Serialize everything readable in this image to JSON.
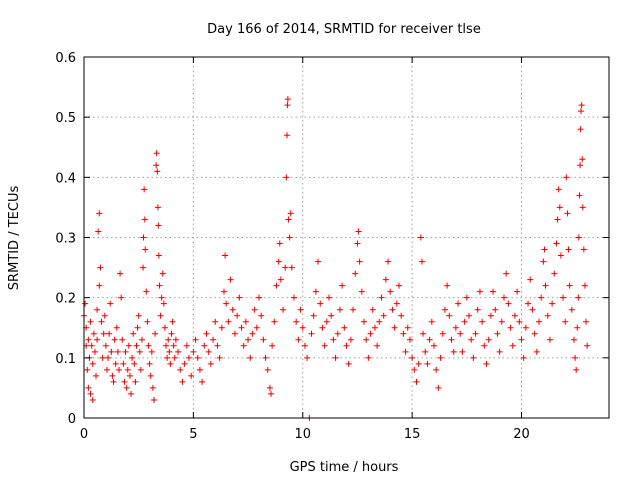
{
  "chart_data": {
    "type": "scatter",
    "title": "Day 166 of 2014, SRMTID for receiver tlse",
    "xlabel": "GPS time / hours",
    "ylabel": "SRMTID / TECUs",
    "xlim": [
      0,
      24
    ],
    "ylim": [
      0,
      0.6
    ],
    "xticks": [
      0,
      5,
      10,
      15,
      20
    ],
    "xtick_labels": [
      "0",
      "5",
      "10",
      "15",
      "20"
    ],
    "yticks": [
      0,
      0.1,
      0.2,
      0.3,
      0.4,
      0.5,
      0.6
    ],
    "ytick_labels": [
      "0",
      "0.1",
      "0.2",
      "0.3",
      "0.4",
      "0.5",
      "0.6"
    ],
    "grid": true,
    "marker": "plus",
    "color": "#ee0000",
    "series": [
      {
        "name": "SRMTID",
        "points": [
          [
            0.0,
            0.17
          ],
          [
            0.05,
            0.19
          ],
          [
            0.1,
            0.15
          ],
          [
            0.1,
            0.12
          ],
          [
            0.15,
            0.08
          ],
          [
            0.2,
            0.05
          ],
          [
            0.2,
            0.13
          ],
          [
            0.25,
            0.1
          ],
          [
            0.3,
            0.04
          ],
          [
            0.3,
            0.16
          ],
          [
            0.35,
            0.12
          ],
          [
            0.4,
            0.03
          ],
          [
            0.4,
            0.09
          ],
          [
            0.45,
            0.14
          ],
          [
            0.5,
            0.11
          ],
          [
            0.55,
            0.07
          ],
          [
            0.6,
            0.13
          ],
          [
            0.6,
            0.18
          ],
          [
            0.65,
            0.31
          ],
          [
            0.7,
            0.34
          ],
          [
            0.7,
            0.22
          ],
          [
            0.75,
            0.25
          ],
          [
            0.8,
            0.16
          ],
          [
            0.85,
            0.1
          ],
          [
            0.9,
            0.14
          ],
          [
            0.95,
            0.17
          ],
          [
            1.0,
            0.12
          ],
          [
            1.05,
            0.08
          ],
          [
            1.1,
            0.1
          ],
          [
            1.15,
            0.14
          ],
          [
            1.2,
            0.19
          ],
          [
            1.25,
            0.11
          ],
          [
            1.3,
            0.07
          ],
          [
            1.35,
            0.06
          ],
          [
            1.4,
            0.13
          ],
          [
            1.45,
            0.09
          ],
          [
            1.5,
            0.15
          ],
          [
            1.55,
            0.11
          ],
          [
            1.6,
            0.08
          ],
          [
            1.65,
            0.24
          ],
          [
            1.7,
            0.2
          ],
          [
            1.75,
            0.13
          ],
          [
            1.8,
            0.09
          ],
          [
            1.85,
            0.06
          ],
          [
            1.9,
            0.11
          ],
          [
            1.95,
            0.05
          ],
          [
            2.0,
            0.08
          ],
          [
            2.05,
            0.12
          ],
          [
            2.1,
            0.07
          ],
          [
            2.15,
            0.04
          ],
          [
            2.2,
            0.1
          ],
          [
            2.25,
            0.14
          ],
          [
            2.3,
            0.09
          ],
          [
            2.35,
            0.06
          ],
          [
            2.4,
            0.12
          ],
          [
            2.45,
            0.15
          ],
          [
            2.5,
            0.17
          ],
          [
            2.55,
            0.11
          ],
          [
            2.6,
            0.08
          ],
          [
            2.65,
            0.13
          ],
          [
            2.7,
            0.25
          ],
          [
            2.72,
            0.3
          ],
          [
            2.75,
            0.38
          ],
          [
            2.78,
            0.33
          ],
          [
            2.8,
            0.28
          ],
          [
            2.85,
            0.21
          ],
          [
            2.9,
            0.16
          ],
          [
            2.95,
            0.12
          ],
          [
            3.0,
            0.09
          ],
          [
            3.05,
            0.07
          ],
          [
            3.1,
            0.11
          ],
          [
            3.15,
            0.05
          ],
          [
            3.2,
            0.03
          ],
          [
            3.25,
            0.14
          ],
          [
            3.3,
            0.42
          ],
          [
            3.32,
            0.44
          ],
          [
            3.35,
            0.41
          ],
          [
            3.38,
            0.35
          ],
          [
            3.4,
            0.32
          ],
          [
            3.42,
            0.27
          ],
          [
            3.45,
            0.22
          ],
          [
            3.5,
            0.17
          ],
          [
            3.55,
            0.2
          ],
          [
            3.6,
            0.24
          ],
          [
            3.65,
            0.19
          ],
          [
            3.7,
            0.15
          ],
          [
            3.75,
            0.12
          ],
          [
            3.8,
            0.1
          ],
          [
            3.85,
            0.13
          ],
          [
            3.9,
            0.11
          ],
          [
            3.95,
            0.09
          ],
          [
            4.0,
            0.14
          ],
          [
            4.05,
            0.16
          ],
          [
            4.1,
            0.12
          ],
          [
            4.15,
            0.1
          ],
          [
            4.2,
            0.13
          ],
          [
            4.3,
            0.11
          ],
          [
            4.4,
            0.08
          ],
          [
            4.5,
            0.06
          ],
          [
            4.6,
            0.09
          ],
          [
            4.7,
            0.12
          ],
          [
            4.8,
            0.1
          ],
          [
            4.9,
            0.07
          ],
          [
            5.0,
            0.11
          ],
          [
            5.1,
            0.13
          ],
          [
            5.2,
            0.1
          ],
          [
            5.3,
            0.08
          ],
          [
            5.4,
            0.06
          ],
          [
            5.5,
            0.12
          ],
          [
            5.6,
            0.14
          ],
          [
            5.7,
            0.11
          ],
          [
            5.8,
            0.09
          ],
          [
            5.9,
            0.13
          ],
          [
            6.0,
            0.16
          ],
          [
            6.1,
            0.12
          ],
          [
            6.2,
            0.1
          ],
          [
            6.3,
            0.15
          ],
          [
            6.4,
            0.21
          ],
          [
            6.45,
            0.27
          ],
          [
            6.5,
            0.19
          ],
          [
            6.6,
            0.16
          ],
          [
            6.7,
            0.23
          ],
          [
            6.8,
            0.18
          ],
          [
            6.9,
            0.14
          ],
          [
            7.0,
            0.17
          ],
          [
            7.1,
            0.2
          ],
          [
            7.2,
            0.15
          ],
          [
            7.3,
            0.12
          ],
          [
            7.4,
            0.16
          ],
          [
            7.5,
            0.13
          ],
          [
            7.6,
            0.1
          ],
          [
            7.7,
            0.14
          ],
          [
            7.8,
            0.18
          ],
          [
            7.9,
            0.15
          ],
          [
            8.0,
            0.2
          ],
          [
            8.1,
            0.17
          ],
          [
            8.2,
            0.13
          ],
          [
            8.3,
            0.1
          ],
          [
            8.4,
            0.08
          ],
          [
            8.5,
            0.05
          ],
          [
            8.55,
            0.04
          ],
          [
            8.6,
            0.12
          ],
          [
            8.7,
            0.16
          ],
          [
            8.8,
            0.22
          ],
          [
            8.9,
            0.26
          ],
          [
            8.95,
            0.29
          ],
          [
            9.0,
            0.23
          ],
          [
            9.1,
            0.18
          ],
          [
            9.2,
            0.25
          ],
          [
            9.25,
            0.4
          ],
          [
            9.28,
            0.47
          ],
          [
            9.3,
            0.52
          ],
          [
            9.32,
            0.53
          ],
          [
            9.35,
            0.33
          ],
          [
            9.4,
            0.3
          ],
          [
            9.45,
            0.34
          ],
          [
            9.5,
            0.25
          ],
          [
            9.6,
            0.2
          ],
          [
            9.7,
            0.16
          ],
          [
            9.8,
            0.13
          ],
          [
            9.9,
            0.18
          ],
          [
            10.0,
            0.15
          ],
          [
            10.1,
            0.12
          ],
          [
            10.2,
            0.1
          ],
          [
            10.3,
            0.0
          ],
          [
            10.4,
            0.14
          ],
          [
            10.5,
            0.17
          ],
          [
            10.6,
            0.21
          ],
          [
            10.7,
            0.26
          ],
          [
            10.8,
            0.19
          ],
          [
            10.9,
            0.15
          ],
          [
            11.0,
            0.12
          ],
          [
            11.1,
            0.16
          ],
          [
            11.2,
            0.2
          ],
          [
            11.3,
            0.17
          ],
          [
            11.4,
            0.13
          ],
          [
            11.5,
            0.1
          ],
          [
            11.6,
            0.14
          ],
          [
            11.7,
            0.18
          ],
          [
            11.8,
            0.22
          ],
          [
            11.9,
            0.15
          ],
          [
            12.0,
            0.12
          ],
          [
            12.1,
            0.09
          ],
          [
            12.2,
            0.13
          ],
          [
            12.3,
            0.18
          ],
          [
            12.4,
            0.24
          ],
          [
            12.5,
            0.29
          ],
          [
            12.55,
            0.31
          ],
          [
            12.6,
            0.26
          ],
          [
            12.7,
            0.21
          ],
          [
            12.8,
            0.16
          ],
          [
            12.9,
            0.13
          ],
          [
            13.0,
            0.1
          ],
          [
            13.1,
            0.14
          ],
          [
            13.2,
            0.18
          ],
          [
            13.3,
            0.15
          ],
          [
            13.4,
            0.12
          ],
          [
            13.5,
            0.16
          ],
          [
            13.6,
            0.2
          ],
          [
            13.7,
            0.17
          ],
          [
            13.8,
            0.23
          ],
          [
            13.9,
            0.26
          ],
          [
            14.0,
            0.21
          ],
          [
            14.1,
            0.18
          ],
          [
            14.2,
            0.15
          ],
          [
            14.3,
            0.19
          ],
          [
            14.4,
            0.22
          ],
          [
            14.5,
            0.17
          ],
          [
            14.6,
            0.14
          ],
          [
            14.7,
            0.11
          ],
          [
            14.8,
            0.15
          ],
          [
            14.9,
            0.13
          ],
          [
            15.0,
            0.1
          ],
          [
            15.1,
            0.08
          ],
          [
            15.2,
            0.06
          ],
          [
            15.3,
            0.09
          ],
          [
            15.4,
            0.3
          ],
          [
            15.45,
            0.26
          ],
          [
            15.5,
            0.14
          ],
          [
            15.6,
            0.11
          ],
          [
            15.7,
            0.09
          ],
          [
            15.8,
            0.13
          ],
          [
            15.9,
            0.16
          ],
          [
            16.0,
            0.12
          ],
          [
            16.1,
            0.08
          ],
          [
            16.2,
            0.05
          ],
          [
            16.3,
            0.1
          ],
          [
            16.4,
            0.14
          ],
          [
            16.5,
            0.18
          ],
          [
            16.6,
            0.22
          ],
          [
            16.7,
            0.17
          ],
          [
            16.8,
            0.13
          ],
          [
            16.9,
            0.11
          ],
          [
            17.0,
            0.15
          ],
          [
            17.1,
            0.19
          ],
          [
            17.2,
            0.14
          ],
          [
            17.3,
            0.11
          ],
          [
            17.4,
            0.16
          ],
          [
            17.5,
            0.2
          ],
          [
            17.6,
            0.17
          ],
          [
            17.7,
            0.13
          ],
          [
            17.8,
            0.1
          ],
          [
            17.9,
            0.14
          ],
          [
            18.0,
            0.18
          ],
          [
            18.1,
            0.21
          ],
          [
            18.2,
            0.16
          ],
          [
            18.3,
            0.12
          ],
          [
            18.4,
            0.09
          ],
          [
            18.5,
            0.13
          ],
          [
            18.6,
            0.17
          ],
          [
            18.7,
            0.21
          ],
          [
            18.8,
            0.18
          ],
          [
            18.9,
            0.14
          ],
          [
            19.0,
            0.11
          ],
          [
            19.1,
            0.16
          ],
          [
            19.2,
            0.2
          ],
          [
            19.3,
            0.24
          ],
          [
            19.4,
            0.19
          ],
          [
            19.5,
            0.15
          ],
          [
            19.6,
            0.12
          ],
          [
            19.7,
            0.17
          ],
          [
            19.8,
            0.21
          ],
          [
            19.9,
            0.16
          ],
          [
            20.0,
            0.13
          ],
          [
            20.1,
            0.1
          ],
          [
            20.2,
            0.15
          ],
          [
            20.3,
            0.19
          ],
          [
            20.4,
            0.23
          ],
          [
            20.5,
            0.18
          ],
          [
            20.6,
            0.14
          ],
          [
            20.7,
            0.11
          ],
          [
            20.8,
            0.16
          ],
          [
            20.9,
            0.2
          ],
          [
            21.0,
            0.26
          ],
          [
            21.05,
            0.28
          ],
          [
            21.1,
            0.22
          ],
          [
            21.2,
            0.17
          ],
          [
            21.3,
            0.13
          ],
          [
            21.4,
            0.19
          ],
          [
            21.5,
            0.24
          ],
          [
            21.6,
            0.29
          ],
          [
            21.65,
            0.33
          ],
          [
            21.7,
            0.38
          ],
          [
            21.75,
            0.35
          ],
          [
            21.8,
            0.27
          ],
          [
            21.9,
            0.2
          ],
          [
            22.0,
            0.16
          ],
          [
            22.05,
            0.4
          ],
          [
            22.1,
            0.34
          ],
          [
            22.15,
            0.28
          ],
          [
            22.2,
            0.22
          ],
          [
            22.3,
            0.18
          ],
          [
            22.4,
            0.13
          ],
          [
            22.45,
            0.1
          ],
          [
            22.5,
            0.08
          ],
          [
            22.55,
            0.15
          ],
          [
            22.6,
            0.2
          ],
          [
            22.62,
            0.3
          ],
          [
            22.65,
            0.37
          ],
          [
            22.68,
            0.42
          ],
          [
            22.7,
            0.48
          ],
          [
            22.72,
            0.51
          ],
          [
            22.75,
            0.52
          ],
          [
            22.78,
            0.43
          ],
          [
            22.8,
            0.35
          ],
          [
            22.85,
            0.28
          ],
          [
            22.9,
            0.22
          ],
          [
            22.95,
            0.16
          ],
          [
            23.0,
            0.12
          ]
        ]
      }
    ]
  }
}
